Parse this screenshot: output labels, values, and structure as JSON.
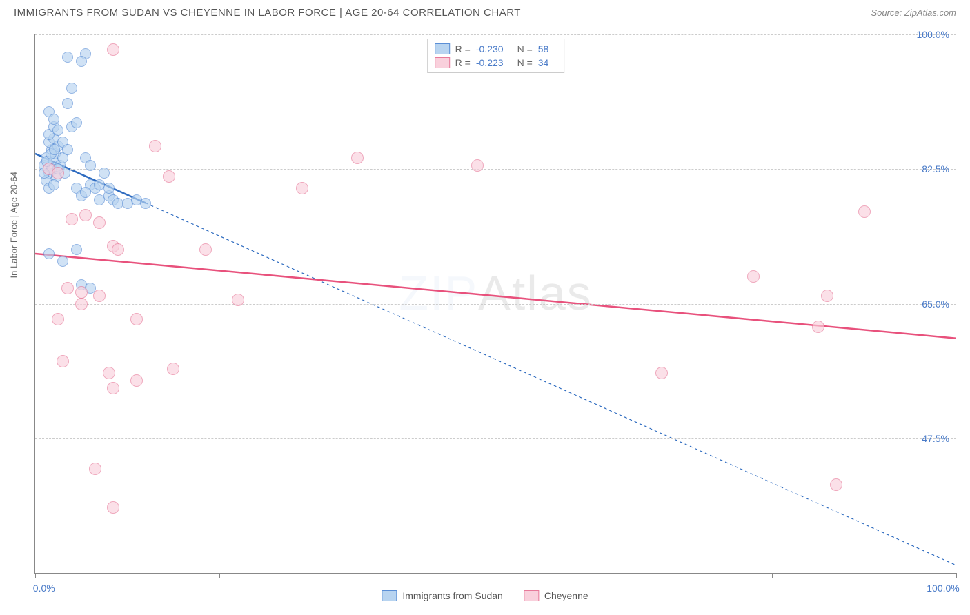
{
  "title": "IMMIGRANTS FROM SUDAN VS CHEYENNE IN LABOR FORCE | AGE 20-64 CORRELATION CHART",
  "source": "Source: ZipAtlas.com",
  "watermark": {
    "zip": "ZIP",
    "atlas": "Atlas"
  },
  "chart": {
    "type": "scatter",
    "background": "#ffffff",
    "ylabel": "In Labor Force | Age 20-64",
    "x_range": [
      0,
      100
    ],
    "y_range": [
      30,
      100
    ],
    "y_gridlines": [
      47.5,
      65.0,
      82.5,
      100.0
    ],
    "y_tick_labels": [
      "47.5%",
      "65.0%",
      "82.5%",
      "100.0%"
    ],
    "x_ticks": [
      0,
      20,
      40,
      60,
      80,
      100
    ],
    "x_tick_labels": {
      "first": "0.0%",
      "last": "100.0%"
    },
    "grid_color": "#cccccc",
    "axis_color": "#888888",
    "tick_label_color": "#4a7bc8",
    "series": [
      {
        "id": "sudan",
        "label": "Immigrants from Sudan",
        "marker_fill": "#b8d4f0",
        "marker_stroke": "#5b8fd6",
        "marker_opacity": 0.65,
        "marker_size": 16,
        "line_color": "#2f6cc0",
        "line_width": 2.5,
        "line_dash_extend": "4,4",
        "R": "-0.230",
        "N": "58",
        "trend": {
          "x1": 0,
          "y1": 84.5,
          "x2": 100,
          "y2": 31,
          "solid_until_x": 12
        },
        "points": [
          [
            1.0,
            83.0
          ],
          [
            1.2,
            84.0
          ],
          [
            1.5,
            82.0
          ],
          [
            1.8,
            85.0
          ],
          [
            1.5,
            86.0
          ],
          [
            2.0,
            83.5
          ],
          [
            2.2,
            84.5
          ],
          [
            2.5,
            85.5
          ],
          [
            2.0,
            86.5
          ],
          [
            1.8,
            82.5
          ],
          [
            2.3,
            81.5
          ],
          [
            2.7,
            83.0
          ],
          [
            3.0,
            84.0
          ],
          [
            3.2,
            82.0
          ],
          [
            1.5,
            87.0
          ],
          [
            2.0,
            88.0
          ],
          [
            2.5,
            87.5
          ],
          [
            3.0,
            86.0
          ],
          [
            3.5,
            85.0
          ],
          [
            1.2,
            81.0
          ],
          [
            1.5,
            80.0
          ],
          [
            2.0,
            80.5
          ],
          [
            2.5,
            82.5
          ],
          [
            1.0,
            82.0
          ],
          [
            1.3,
            83.5
          ],
          [
            1.7,
            84.5
          ],
          [
            2.1,
            85.0
          ],
          [
            1.5,
            90.0
          ],
          [
            2.0,
            89.0
          ],
          [
            3.5,
            91.0
          ],
          [
            4.0,
            88.0
          ],
          [
            4.5,
            88.5
          ],
          [
            3.5,
            97.0
          ],
          [
            4.0,
            93.0
          ],
          [
            5.5,
            97.5
          ],
          [
            5.0,
            96.5
          ],
          [
            4.5,
            80.0
          ],
          [
            5.0,
            79.0
          ],
          [
            6.0,
            80.5
          ],
          [
            5.5,
            79.5
          ],
          [
            6.5,
            80.0
          ],
          [
            7.0,
            80.5
          ],
          [
            8.0,
            79.0
          ],
          [
            8.5,
            78.5
          ],
          [
            9.0,
            78.0
          ],
          [
            5.5,
            84.0
          ],
          [
            6.0,
            83.0
          ],
          [
            7.5,
            82.0
          ],
          [
            1.5,
            71.5
          ],
          [
            3.0,
            70.5
          ],
          [
            4.5,
            72.0
          ],
          [
            5.0,
            67.5
          ],
          [
            6.0,
            67.0
          ],
          [
            7.0,
            78.5
          ],
          [
            8.0,
            80.0
          ],
          [
            10.0,
            78.0
          ],
          [
            11.0,
            78.5
          ],
          [
            12.0,
            78.0
          ]
        ]
      },
      {
        "id": "cheyenne",
        "label": "Cheyenne",
        "marker_fill": "#f9d0dc",
        "marker_stroke": "#e77a9a",
        "marker_opacity": 0.65,
        "marker_size": 18,
        "line_color": "#e8517c",
        "line_width": 2.5,
        "R": "-0.223",
        "N": "34",
        "trend": {
          "x1": 0,
          "y1": 71.5,
          "x2": 100,
          "y2": 60.5
        },
        "points": [
          [
            1.5,
            82.5
          ],
          [
            2.5,
            82.0
          ],
          [
            8.5,
            98.0
          ],
          [
            13.0,
            85.5
          ],
          [
            14.5,
            81.5
          ],
          [
            4.0,
            76.0
          ],
          [
            5.5,
            76.5
          ],
          [
            7.0,
            75.5
          ],
          [
            8.5,
            72.5
          ],
          [
            3.5,
            67.0
          ],
          [
            5.0,
            66.5
          ],
          [
            7.0,
            66.0
          ],
          [
            9.0,
            72.0
          ],
          [
            18.5,
            72.0
          ],
          [
            2.5,
            63.0
          ],
          [
            5.0,
            65.0
          ],
          [
            11.0,
            63.0
          ],
          [
            3.0,
            57.5
          ],
          [
            8.0,
            56.0
          ],
          [
            8.5,
            54.0
          ],
          [
            11.0,
            55.0
          ],
          [
            15.0,
            56.5
          ],
          [
            6.5,
            43.5
          ],
          [
            8.5,
            38.5
          ],
          [
            22.0,
            65.5
          ],
          [
            29.0,
            80.0
          ],
          [
            35.0,
            84.0
          ],
          [
            48.0,
            83.0
          ],
          [
            68.0,
            56.0
          ],
          [
            78.0,
            68.5
          ],
          [
            85.0,
            62.0
          ],
          [
            86.0,
            66.0
          ],
          [
            90.0,
            77.0
          ],
          [
            87.0,
            41.5
          ]
        ]
      }
    ]
  },
  "legend_top": {
    "R_label": "R =",
    "N_label": "N ="
  }
}
